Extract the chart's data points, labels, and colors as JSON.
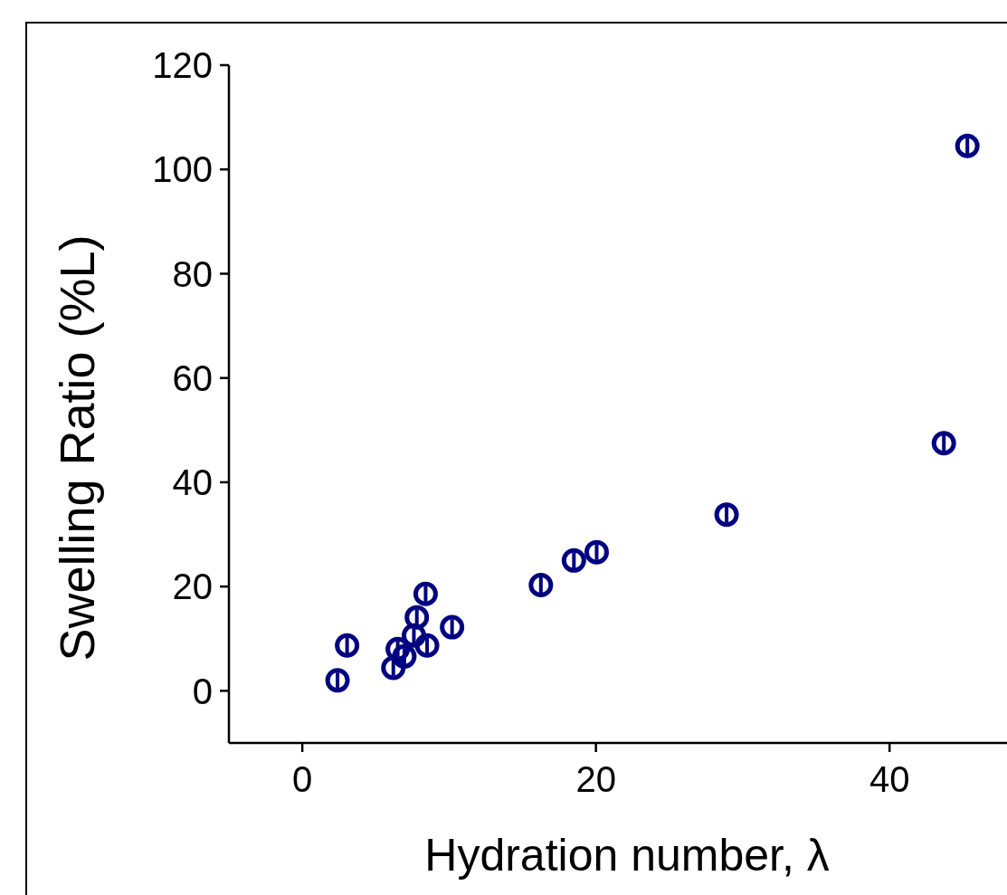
{
  "chart_data": {
    "type": "scatter",
    "xlabel": "Hydration number, λ",
    "ylabel": "Swelling Ratio (%L)",
    "x": [
      2.4,
      3.05,
      6.2,
      6.5,
      6.95,
      7.6,
      7.8,
      8.4,
      8.5,
      10.2,
      16.25,
      18.5,
      20.05,
      28.9,
      43.7,
      45.3
    ],
    "series": [
      {
        "color": "#000080",
        "values": [
          2.0,
          8.7,
          4.4,
          8.0,
          6.6,
          10.6,
          14.1,
          18.6,
          8.7,
          12.2,
          20.3,
          25.0,
          26.6,
          33.8,
          47.5,
          104.5
        ],
        "errors": [
          1.5,
          1.5,
          1.5,
          1.5,
          1.5,
          1.5,
          1.5,
          1.5,
          1.5,
          1.5,
          1.5,
          1.5,
          1.5,
          1.5,
          1.5,
          1.5
        ]
      }
    ],
    "xlim": [
      -5,
      48
    ],
    "xticks": [
      0,
      20,
      40
    ],
    "ylim": [
      -10,
      120
    ],
    "yticks": [
      0,
      20,
      40,
      60,
      80,
      100,
      120
    ],
    "marker": "circle",
    "grid": false
  }
}
